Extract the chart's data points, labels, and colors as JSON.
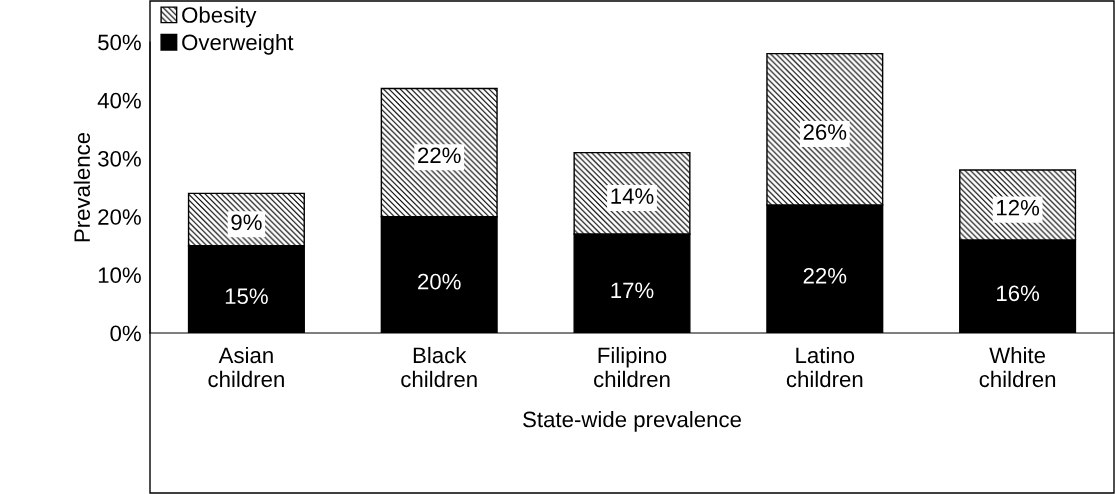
{
  "chart_data": {
    "type": "bar",
    "stacked": true,
    "categories": [
      "Asian\nchildren",
      "Black\nchildren",
      "Filipino\nchildren",
      "Latino\nchildren",
      "White\nchildren"
    ],
    "series": [
      {
        "name": "Overweight",
        "color": "#000000",
        "values": [
          15,
          20,
          17,
          22,
          16
        ],
        "value_labels": [
          "15%",
          "20%",
          "17%",
          "22%",
          "16%"
        ]
      },
      {
        "name": "Obesity",
        "color": "#000000",
        "values": [
          9,
          22,
          14,
          26,
          12
        ],
        "value_labels": [
          "9%",
          "22%",
          "14%",
          "26%",
          "12%"
        ]
      }
    ],
    "xlabel": "State-wide prevalence",
    "ylabel": "Prevalence",
    "ylim": [
      0,
      50
    ],
    "yticks": [
      {
        "value": 0,
        "label": "0%"
      },
      {
        "value": 10,
        "label": "10%"
      },
      {
        "value": 20,
        "label": "20%"
      },
      {
        "value": 30,
        "label": "30%"
      },
      {
        "value": 40,
        "label": "40%"
      },
      {
        "value": 50,
        "label": "50%"
      }
    ],
    "legend": "top left",
    "grid": false
  }
}
